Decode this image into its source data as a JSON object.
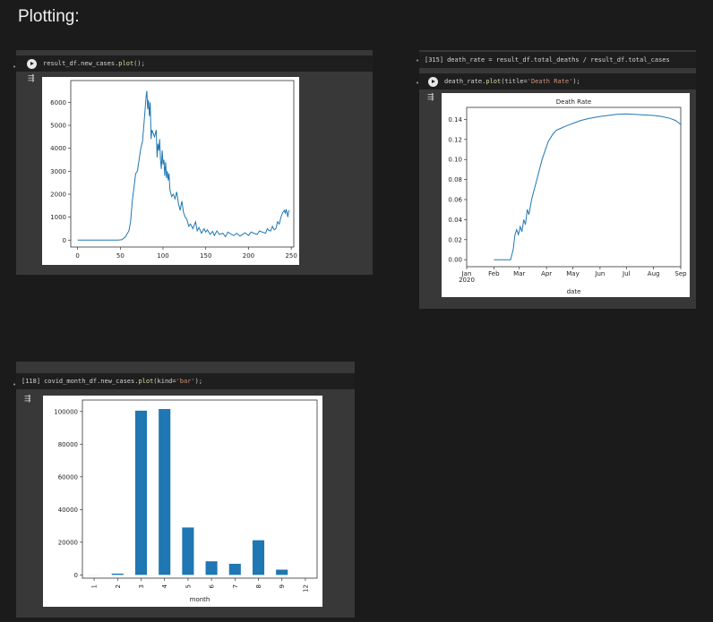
{
  "heading": "Plotting:",
  "cells": {
    "new_cases": {
      "code_a": "result_df.new_cases.",
      "code_fn": "plot",
      "code_b": "();",
      "chart_data": {
        "type": "line",
        "xlim": [
          -8,
          253
        ],
        "ylim": [
          -300,
          6950
        ],
        "x_ticks": [
          0,
          50,
          100,
          150,
          200,
          250
        ],
        "y_ticks": [
          0,
          1000,
          2000,
          3000,
          4000,
          5000,
          6000
        ],
        "x_tick_labels": [
          "0",
          "50",
          "100",
          "150",
          "200",
          "250"
        ],
        "y_tick_labels": [
          "0",
          "1000",
          "2000",
          "3000",
          "4000",
          "5000",
          "6000"
        ],
        "color": "#1f77b4",
        "x": [
          0,
          10,
          20,
          30,
          40,
          48,
          52,
          56,
          60,
          62,
          64,
          66,
          68,
          70,
          72,
          74,
          76,
          78,
          80,
          81,
          82,
          83,
          84,
          85,
          86,
          87,
          88,
          90,
          92,
          93,
          94,
          95,
          96,
          97,
          98,
          99,
          100,
          101,
          102,
          103,
          104,
          105,
          106,
          107,
          108,
          110,
          112,
          114,
          116,
          118,
          120,
          122,
          124,
          126,
          128,
          130,
          132,
          135,
          138,
          140,
          142,
          145,
          148,
          150,
          152,
          155,
          158,
          160,
          163,
          166,
          170,
          173,
          176,
          180,
          183,
          186,
          190,
          193,
          196,
          200,
          203,
          206,
          210,
          213,
          216,
          220,
          222,
          224,
          226,
          228,
          230,
          232,
          234,
          236,
          238,
          240,
          242,
          243,
          244,
          245,
          246,
          247,
          248
        ],
        "y": [
          0,
          0,
          0,
          0,
          0,
          0,
          20,
          150,
          400,
          800,
          1700,
          2300,
          2900,
          3000,
          3500,
          4000,
          4300,
          5200,
          6200,
          6500,
          5700,
          6100,
          5400,
          6000,
          4400,
          4800,
          4700,
          4500,
          4800,
          3600,
          4200,
          3900,
          4400,
          3500,
          3100,
          3900,
          3300,
          3500,
          2800,
          3400,
          2700,
          3000,
          2600,
          2900,
          2200,
          1900,
          2000,
          1800,
          2100,
          1600,
          1300,
          1700,
          1200,
          1000,
          900,
          600,
          700,
          500,
          800,
          400,
          550,
          300,
          500,
          350,
          450,
          250,
          380,
          200,
          400,
          250,
          300,
          150,
          350,
          250,
          200,
          300,
          180,
          250,
          320,
          200,
          350,
          300,
          250,
          400,
          350,
          300,
          500,
          420,
          400,
          600,
          450,
          500,
          800,
          700,
          1000,
          1200,
          1300,
          1150,
          1350,
          1200,
          1000,
          1250,
          1300
        ]
      }
    },
    "death_rate": {
      "exec_count": "[315]",
      "code1": "death_rate = result_df.total_deaths / result_df.total_cases",
      "code2_a": "death_rate.",
      "code2_fn": "plot",
      "code2_b": "(title=",
      "code2_str": "'Death Rate'",
      "code2_c": ");",
      "chart_data": {
        "type": "line",
        "title": "Death Rate",
        "xlabel": "date",
        "xlim": [
          "2020-01-01",
          "2020-09-01"
        ],
        "ylim": [
          -0.007,
          0.152
        ],
        "x_ticks": [
          "2020-01-01",
          "2020-02-01",
          "2020-03-01",
          "2020-04-01",
          "2020-05-01",
          "2020-06-01",
          "2020-07-01",
          "2020-08-01",
          "2020-09-01"
        ],
        "x_tick_labels": [
          "Jan",
          "Feb",
          "Mar",
          "Apr",
          "May",
          "Jun",
          "Jul",
          "Aug",
          "Sep"
        ],
        "x_year_label": "2020",
        "y_ticks": [
          0,
          0.02,
          0.04,
          0.06,
          0.08,
          0.1,
          0.12,
          0.14
        ],
        "y_tick_labels": [
          "0.00",
          "0.02",
          "0.04",
          "0.06",
          "0.08",
          "0.10",
          "0.12",
          "0.14"
        ],
        "color": "#1f77b4",
        "x": [
          "2020-02-01",
          "2020-02-10",
          "2020-02-20",
          "2020-02-23",
          "2020-02-25",
          "2020-02-27",
          "2020-02-29",
          "2020-03-02",
          "2020-03-04",
          "2020-03-06",
          "2020-03-08",
          "2020-03-10",
          "2020-03-12",
          "2020-03-15",
          "2020-03-18",
          "2020-03-21",
          "2020-03-24",
          "2020-03-27",
          "2020-03-30",
          "2020-04-03",
          "2020-04-08",
          "2020-04-12",
          "2020-04-17",
          "2020-04-22",
          "2020-05-01",
          "2020-05-10",
          "2020-05-20",
          "2020-06-01",
          "2020-06-10",
          "2020-06-20",
          "2020-07-01",
          "2020-07-10",
          "2020-07-20",
          "2020-08-01",
          "2020-08-10",
          "2020-08-20",
          "2020-08-26",
          "2020-09-01"
        ],
        "y": [
          0,
          0,
          0,
          0.01,
          0.025,
          0.03,
          0.025,
          0.033,
          0.028,
          0.04,
          0.035,
          0.05,
          0.045,
          0.06,
          0.07,
          0.08,
          0.09,
          0.1,
          0.108,
          0.118,
          0.125,
          0.129,
          0.131,
          0.133,
          0.136,
          0.139,
          0.141,
          0.143,
          0.144,
          0.145,
          0.1455,
          0.145,
          0.1445,
          0.144,
          0.143,
          0.141,
          0.139,
          0.135
        ]
      }
    },
    "monthly": {
      "exec_count": "[118]",
      "code_a": "covid_month_df.new_cases.",
      "code_fn": "plot",
      "code_b": "(kind=",
      "code_str": "'bar'",
      "code_c": ");",
      "chart_data": {
        "type": "bar",
        "xlabel": "month",
        "categories": [
          "1",
          "2",
          "3",
          "4",
          "5",
          "6",
          "7",
          "8",
          "9",
          "12"
        ],
        "values": [
          40,
          800,
          100500,
          101500,
          29000,
          8300,
          6800,
          21200,
          3200,
          0
        ],
        "ylim": [
          -2000,
          107000
        ],
        "y_ticks": [
          0,
          20000,
          40000,
          60000,
          80000,
          100000
        ],
        "y_tick_labels": [
          "0",
          "20000",
          "40000",
          "60000",
          "80000",
          "100000"
        ],
        "color": "#1f77b4"
      }
    }
  }
}
